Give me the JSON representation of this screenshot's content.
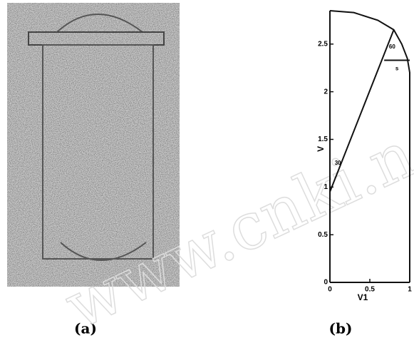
{
  "panel_a": {
    "label": "(a)"
  },
  "panel_b": {
    "label": "(b)"
  },
  "watermark": "www.cnki.n",
  "chart_data": {
    "type": "line",
    "x_label": "V1",
    "y_label": "V",
    "xlim": [
      0,
      1
    ],
    "ylim": [
      0,
      2.85
    ],
    "xticks": [
      0,
      0.5,
      1
    ],
    "yticks": [
      0,
      0.5,
      1,
      1.5,
      2,
      2.5
    ],
    "annotations": [
      "60",
      "s",
      "30"
    ],
    "series": [
      {
        "color": "#111111",
        "x": [
          0,
          0.3,
          0.6,
          0.8,
          0.9,
          0.97,
          1,
          1
        ],
        "values": [
          2.85,
          2.83,
          2.75,
          2.65,
          2.5,
          2.35,
          2.2,
          0
        ]
      },
      {
        "color": "#111111",
        "x": [
          0,
          0.8
        ],
        "values": [
          0.95,
          2.65
        ]
      },
      {
        "color": "#111111",
        "x": [
          0.68,
          1
        ],
        "values": [
          2.33,
          2.33
        ]
      }
    ]
  }
}
